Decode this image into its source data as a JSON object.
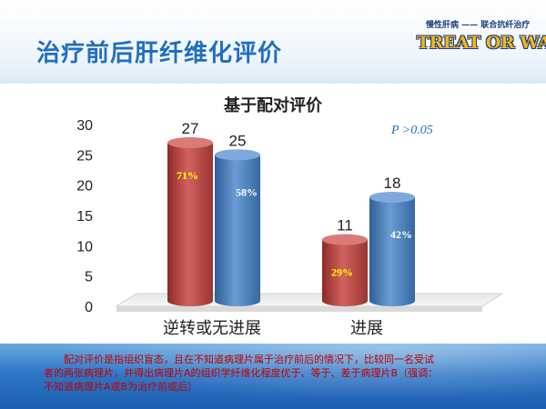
{
  "slide": {
    "title": "治疗前后肝纤维化评价",
    "brand_tagline": "慢性肝病 —— 联合抗纤治疗",
    "brand_logo": "TREAT OR WAIT"
  },
  "chart_data": {
    "type": "bar",
    "title": "基于配对评价",
    "annotation": "P >0.05",
    "categories": [
      "逆转或无进展",
      "进展"
    ],
    "series": [
      {
        "name": "",
        "color": "#c0504d",
        "values": [
          27,
          11
        ],
        "percent_labels": [
          "71%",
          "29%"
        ]
      },
      {
        "name": "",
        "color": "#4f81bd",
        "values": [
          25,
          18
        ],
        "percent_labels": [
          "58%",
          "42%"
        ]
      }
    ],
    "ylim": [
      0,
      30
    ],
    "yticks": [
      0,
      5,
      10,
      15,
      20,
      25,
      30
    ],
    "grid": false,
    "three_d": true
  },
  "footnote": {
    "line1": "配对评价是指组织盲态，且在不知道病理片属于治疗前后的情况下，比较同一名受试",
    "line2": "者的两张病理片，并得出病理片A的组织学纤维化程度优于、等于、差于病理片B（强调：",
    "line3": "不知道病理片A或B为治疗前或后）"
  }
}
